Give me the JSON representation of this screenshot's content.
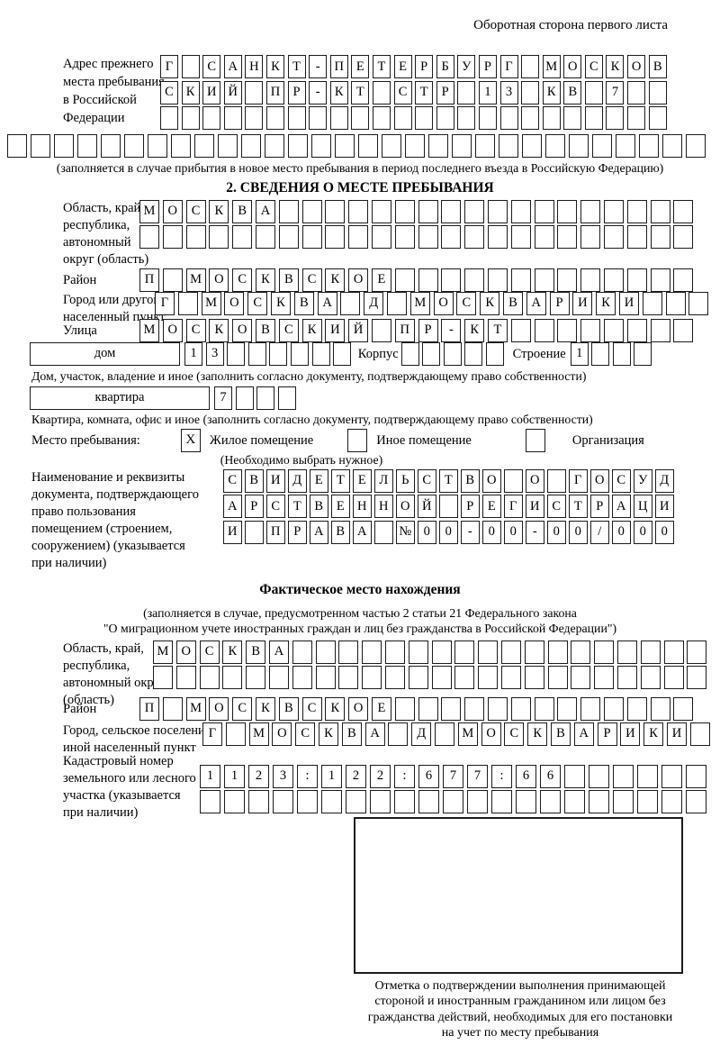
{
  "header_note": "Оборотная сторона первого листа",
  "prev_address": {
    "label_lines": [
      "Адрес прежнего",
      "места пребывания",
      "в Российской",
      "Федерации"
    ],
    "rows": [
      {
        "text": "Г САНКТ-ПЕТЕРБУРГ МОСКОВ",
        "len": 24
      },
      {
        "text": "СКИЙ ПР-КТ СТР 13 КВ 7",
        "len": 24
      },
      {
        "text": "",
        "len": 24
      }
    ],
    "full_row": {
      "text": "",
      "len": 30
    },
    "caption": "(заполняется в случае прибытия в новое место пребывания в период последнего въезда в Российскую Федерацию)"
  },
  "section2": {
    "title": "2. СВЕДЕНИЯ О МЕСТЕ ПРЕБЫВАНИЯ",
    "oblast": {
      "label_lines": [
        "Область, край,",
        "республика,",
        "автономный",
        "округ (область)"
      ],
      "rows": [
        {
          "text": "МОСКВА",
          "len": 24
        },
        {
          "text": "",
          "len": 24
        }
      ]
    },
    "raion": {
      "label": "Район",
      "row": {
        "text": "П МОСКВСКОЕ",
        "len": 24
      }
    },
    "gorod": {
      "label_lines": [
        "Город или другой",
        "населенный пункт"
      ],
      "row": {
        "text": "Г МОСКВА Д МОСКВАРИКИ",
        "len": 24
      }
    },
    "ulitsa": {
      "label": "Улица",
      "row": {
        "text": "МОСКОВСКИЙ ПР-КТ",
        "len": 24
      }
    },
    "dom": {
      "box_label": "дом",
      "cells": {
        "text": "13",
        "len": 8
      },
      "korpus_label": "Корпус",
      "korpus_cells": {
        "text": "",
        "len": 5
      },
      "stroenie_label": "Строение",
      "stroenie_cells": {
        "text": "1",
        "len": 4
      },
      "caption": "Дом, участок, владение и иное (заполнить согласно документу, подтверждающему право собственности)"
    },
    "kvartira": {
      "box_label": "квартира",
      "cells": {
        "text": "7",
        "len": 4
      },
      "caption": "Квартира, комната, офис и иное (заполнить согласно документу, подтверждающему право собственности)"
    },
    "mesto": {
      "label": "Место пребывания:",
      "options": [
        {
          "label": "Жилое помещение",
          "mark": "X"
        },
        {
          "label": "Иное помещение",
          "mark": ""
        },
        {
          "label": "Организация",
          "mark": ""
        }
      ],
      "note": "(Необходимо выбрать нужное)"
    },
    "doc": {
      "label_lines": [
        "Наименование и реквизиты",
        "документа, подтверждающего",
        "право пользования",
        "помещением (строением,",
        "сооружением) (указывается",
        "при наличии)"
      ],
      "rows": [
        {
          "text": "СВИДЕТЕЛЬСТВО О ГОСУД",
          "len": 21
        },
        {
          "text": "АРСТВЕННОЙ РЕГИСТРАЦИ",
          "len": 21
        },
        {
          "text": "И ПРАВА №00-00-00/000",
          "len": 21
        }
      ]
    }
  },
  "fact": {
    "title": "Фактическое место нахождения",
    "caption_lines": [
      "(заполняется в случае, предусмотренном частью 2 статьи 21 Федерального закона",
      "\"О миграционном учете иностранных граждан и лиц без гражданства в Российской Федерации\")"
    ],
    "oblast": {
      "label_lines": [
        "Область, край,",
        "республика,",
        "автономный округ",
        "(область)"
      ],
      "rows": [
        {
          "text": "МОСКВА",
          "len": 24
        },
        {
          "text": "",
          "len": 24
        }
      ]
    },
    "raion": {
      "label": "Район",
      "row": {
        "text": "П МОСКВСКОЕ",
        "len": 24
      }
    },
    "gorod": {
      "label_lines": [
        "Город, сельское поселение,",
        "иной населенный пункт"
      ],
      "row": {
        "text": "Г МОСКВА Д МОСКВАРИКИ",
        "len": 22
      }
    },
    "kadastr": {
      "label_lines": [
        "Кадастровый номер",
        "земельного или лесного",
        "участка (указывается",
        "при наличии)"
      ],
      "rows": [
        {
          "text": "1123:122:677:66",
          "len": 21
        },
        {
          "text": "",
          "len": 21
        }
      ]
    }
  },
  "stamp": {
    "caption_lines": [
      "Отметка о подтверждении выполнения принимающей",
      "стороной и иностранным гражданином или лицом без",
      "гражданства действий, необходимых для его постановки",
      "на учет по месту пребывания"
    ]
  }
}
